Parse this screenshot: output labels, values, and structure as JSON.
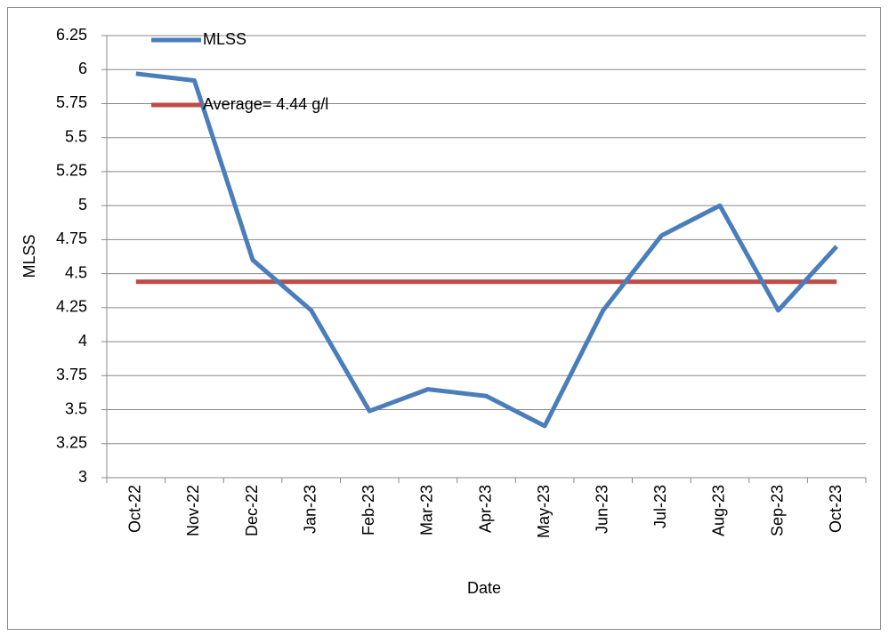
{
  "chart_data": {
    "type": "line",
    "x_label": "Date",
    "y_label": "MLSS",
    "categories": [
      "Oct-22",
      "Nov-22",
      "Dec-22",
      "Jan-23",
      "Feb-23",
      "Mar-23",
      "Apr-23",
      "May-23",
      "Jun-23",
      "Jul-23",
      "Aug-23",
      "Sep-23",
      "Oct-23"
    ],
    "series": [
      {
        "name": "MLSS",
        "color": "#4a7ebb",
        "values": [
          5.97,
          5.92,
          4.6,
          4.23,
          3.49,
          3.65,
          3.6,
          3.38,
          4.23,
          4.78,
          5.0,
          4.23,
          4.7
        ]
      },
      {
        "name": "Average= 4.44 g/l",
        "color": "#be4b48",
        "values": [
          4.44,
          4.44,
          4.44,
          4.44,
          4.44,
          4.44,
          4.44,
          4.44,
          4.44,
          4.44,
          4.44,
          4.44,
          4.44
        ]
      }
    ],
    "ylim": [
      3,
      6.25
    ],
    "yticks": [
      3,
      3.25,
      3.5,
      3.75,
      4,
      4.25,
      4.5,
      4.75,
      5,
      5.25,
      5.5,
      5.75,
      6,
      6.25
    ],
    "grid": true,
    "legend": "top-left"
  }
}
